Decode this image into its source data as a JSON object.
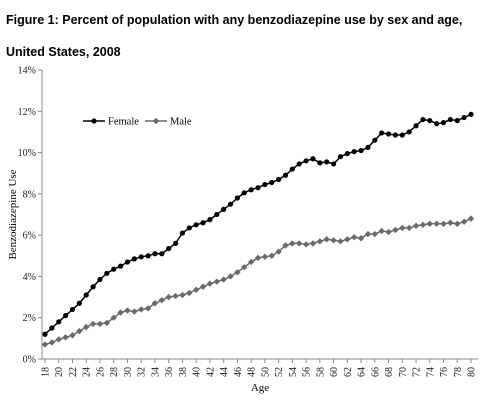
{
  "title": "Figure 1: Percent of population with any benzodiazepine use by sex and age, United States, 2008",
  "chart_data": {
    "type": "line",
    "xlabel": "Age",
    "ylabel": "Benzodiazepine Use",
    "xlim": [
      18,
      80
    ],
    "ylim": [
      0,
      14
    ],
    "x_ticks": [
      "18",
      "20",
      "22",
      "24",
      "26",
      "28",
      "30",
      "32",
      "34",
      "36",
      "38",
      "40",
      "42",
      "44",
      "46",
      "48",
      "50",
      "52",
      "54",
      "56",
      "58",
      "60",
      "62",
      "64",
      "66",
      "68",
      "70",
      "72",
      "74",
      "76",
      "78",
      "80"
    ],
    "y_ticks": [
      "0%",
      "2%",
      "4%",
      "6%",
      "8%",
      "10%",
      "12%",
      "14%"
    ],
    "legend_position": "upper-left",
    "grid": false,
    "x": [
      18,
      19,
      20,
      21,
      22,
      23,
      24,
      25,
      26,
      27,
      28,
      29,
      30,
      31,
      32,
      33,
      34,
      35,
      36,
      37,
      38,
      39,
      40,
      41,
      42,
      43,
      44,
      45,
      46,
      47,
      48,
      49,
      50,
      51,
      52,
      53,
      54,
      55,
      56,
      57,
      58,
      59,
      60,
      61,
      62,
      63,
      64,
      65,
      66,
      67,
      68,
      69,
      70,
      71,
      72,
      73,
      74,
      75,
      76,
      77,
      78,
      79,
      80
    ],
    "series": [
      {
        "name": "Female",
        "color": "#000000",
        "marker": "circle",
        "values": [
          1.2,
          1.5,
          1.8,
          2.1,
          2.4,
          2.7,
          3.1,
          3.5,
          3.85,
          4.15,
          4.35,
          4.5,
          4.7,
          4.85,
          4.95,
          5.0,
          5.1,
          5.1,
          5.35,
          5.6,
          6.1,
          6.35,
          6.5,
          6.6,
          6.75,
          7.0,
          7.25,
          7.5,
          7.8,
          8.05,
          8.2,
          8.3,
          8.45,
          8.55,
          8.7,
          8.9,
          9.2,
          9.45,
          9.6,
          9.7,
          9.5,
          9.55,
          9.45,
          9.8,
          9.95,
          10.05,
          10.1,
          10.25,
          10.6,
          10.95,
          10.9,
          10.85,
          10.85,
          11.0,
          11.3,
          11.6,
          11.55,
          11.4,
          11.45,
          11.6,
          11.55,
          11.7,
          11.85
        ]
      },
      {
        "name": "Male",
        "color": "#6a6a6a",
        "marker": "diamond",
        "values": [
          0.7,
          0.8,
          0.95,
          1.05,
          1.15,
          1.35,
          1.55,
          1.7,
          1.7,
          1.75,
          2.0,
          2.25,
          2.35,
          2.3,
          2.4,
          2.45,
          2.7,
          2.85,
          3.0,
          3.05,
          3.1,
          3.2,
          3.35,
          3.5,
          3.65,
          3.75,
          3.85,
          4.0,
          4.2,
          4.45,
          4.7,
          4.9,
          4.95,
          5.0,
          5.2,
          5.5,
          5.6,
          5.6,
          5.55,
          5.6,
          5.7,
          5.8,
          5.75,
          5.7,
          5.8,
          5.9,
          5.85,
          6.05,
          6.05,
          6.2,
          6.15,
          6.25,
          6.35,
          6.35,
          6.45,
          6.5,
          6.55,
          6.55,
          6.55,
          6.6,
          6.55,
          6.65,
          6.8
        ]
      }
    ]
  }
}
